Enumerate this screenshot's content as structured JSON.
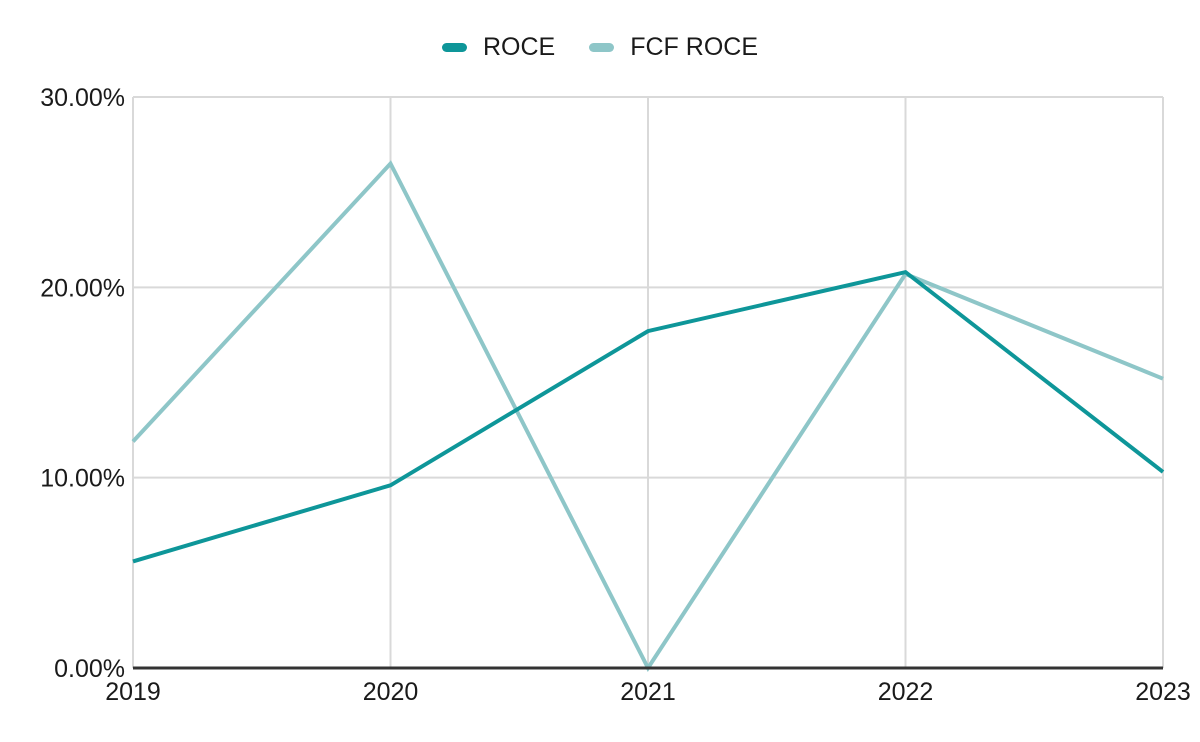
{
  "chart_data": {
    "type": "line",
    "title": "",
    "xlabel": "",
    "ylabel": "",
    "categories": [
      "2019",
      "2020",
      "2021",
      "2022",
      "2023"
    ],
    "series": [
      {
        "name": "ROCE",
        "color": "#0e9699",
        "values": [
          5.6,
          9.6,
          17.7,
          20.8,
          10.3
        ]
      },
      {
        "name": "FCF ROCE",
        "color": "#8ec6c8",
        "values": [
          11.9,
          26.5,
          0.0,
          20.7,
          15.2
        ]
      }
    ],
    "ylim": [
      0,
      30
    ],
    "y_ticks": [
      {
        "value": 0,
        "label": "0.00%"
      },
      {
        "value": 10,
        "label": "10.00%"
      },
      {
        "value": 20,
        "label": "20.00%"
      },
      {
        "value": 30,
        "label": "30.00%"
      }
    ],
    "grid": true,
    "legend_position": "top-center"
  },
  "colors": {
    "grid": "#d9d9d9",
    "axis": "#333333",
    "tick_text": "#1a1a1a",
    "background": "#ffffff"
  }
}
